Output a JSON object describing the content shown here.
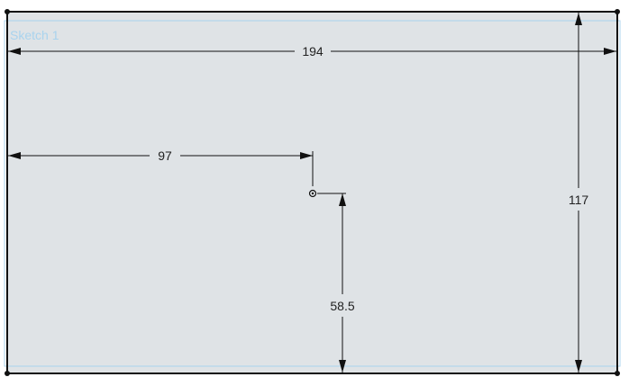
{
  "sketch": {
    "name": "Sketch 1"
  },
  "dimensions": {
    "width": "194",
    "half_width": "97",
    "height": "117",
    "half_height": "58.5"
  },
  "colors": {
    "sketch_fill": "#dfe3e6",
    "sketch_edge": "#111111",
    "sketch_outline": "#a9d3ee",
    "dimension_line": "#111111"
  }
}
